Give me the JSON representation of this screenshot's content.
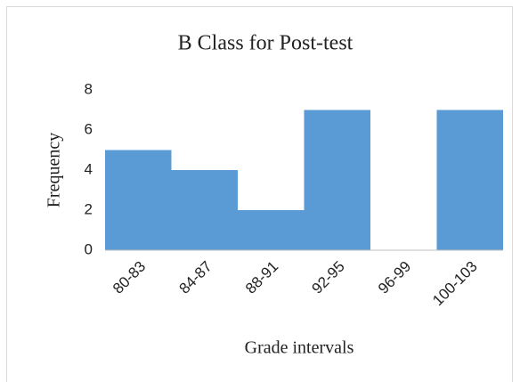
{
  "chart_data": {
    "type": "bar",
    "title": "B Class for Post-test",
    "x_label": "Grade intervals",
    "y_label": "Frequency",
    "categories": [
      "80-83",
      "84-87",
      "88-91",
      "92-95",
      "96-99",
      "100-103"
    ],
    "values": [
      5,
      4,
      2,
      7,
      0,
      7
    ],
    "color": "#5b9bd5",
    "ylim": [
      0,
      8
    ],
    "yticks": [
      0,
      2,
      4,
      6,
      8
    ],
    "grid": false
  }
}
